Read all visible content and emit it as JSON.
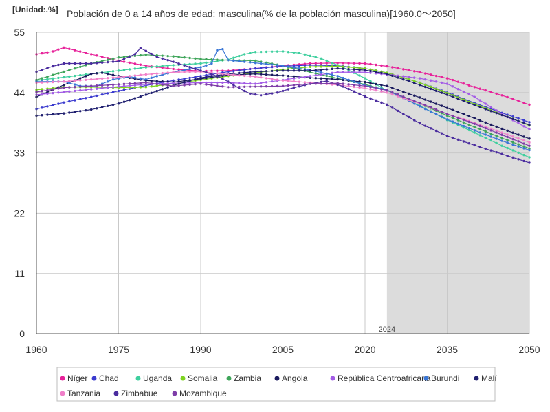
{
  "chart_data": {
    "type": "line",
    "unit_label": "[Unidad:.%]",
    "title": "Población de 0 a 14 años de edad: masculina(% de la población masculina)[1960.0～2050]",
    "x_range": [
      1960,
      2050
    ],
    "y_range": [
      0,
      55
    ],
    "x_ticks": [
      1960,
      1975,
      1990,
      2005,
      2020,
      2035,
      2050
    ],
    "y_ticks": [
      0,
      11,
      22,
      33,
      44,
      55
    ],
    "forecast_start": 2024,
    "forecast_label": "2024",
    "grid": true,
    "legend_position": "bottom",
    "series": [
      {
        "name": "Níger",
        "color": "#e7229a",
        "points": [
          [
            1960,
            51.0
          ],
          [
            1963,
            51.5
          ],
          [
            1965,
            52.2
          ],
          [
            1970,
            51.0
          ],
          [
            1975,
            49.8
          ],
          [
            1980,
            48.9
          ],
          [
            1985,
            48.3
          ],
          [
            1990,
            47.9
          ],
          [
            1995,
            48.0
          ],
          [
            2000,
            48.4
          ],
          [
            2005,
            48.9
          ],
          [
            2010,
            49.3
          ],
          [
            2015,
            49.4
          ],
          [
            2020,
            49.3
          ],
          [
            2024,
            48.8
          ],
          [
            2030,
            47.7
          ],
          [
            2035,
            46.6
          ],
          [
            2040,
            45.0
          ],
          [
            2045,
            43.5
          ],
          [
            2050,
            41.8
          ]
        ]
      },
      {
        "name": "Chad",
        "color": "#3b3bcf",
        "points": [
          [
            1960,
            41.0
          ],
          [
            1965,
            42.2
          ],
          [
            1970,
            43.2
          ],
          [
            1975,
            44.3
          ],
          [
            1980,
            45.3
          ],
          [
            1985,
            46.2
          ],
          [
            1990,
            47.0
          ],
          [
            1995,
            47.8
          ],
          [
            2000,
            48.4
          ],
          [
            2005,
            48.8
          ],
          [
            2010,
            49.0
          ],
          [
            2015,
            48.9
          ],
          [
            2020,
            48.4
          ],
          [
            2024,
            47.6
          ],
          [
            2030,
            45.8
          ],
          [
            2035,
            44.0
          ],
          [
            2040,
            42.1
          ],
          [
            2045,
            40.3
          ],
          [
            2050,
            38.6
          ]
        ]
      },
      {
        "name": "Uganda",
        "color": "#3ecf9e",
        "points": [
          [
            1960,
            46.2
          ],
          [
            1965,
            46.8
          ],
          [
            1970,
            47.4
          ],
          [
            1975,
            48.0
          ],
          [
            1980,
            48.6
          ],
          [
            1985,
            49.0
          ],
          [
            1990,
            49.3
          ],
          [
            1995,
            50.0
          ],
          [
            1998,
            51.0
          ],
          [
            2000,
            51.4
          ],
          [
            2005,
            51.5
          ],
          [
            2008,
            51.2
          ],
          [
            2012,
            50.2
          ],
          [
            2016,
            48.6
          ],
          [
            2020,
            46.6
          ],
          [
            2024,
            44.4
          ],
          [
            2030,
            41.6
          ],
          [
            2035,
            39.0
          ],
          [
            2040,
            36.7
          ],
          [
            2045,
            34.3
          ],
          [
            2050,
            32.2
          ]
        ]
      },
      {
        "name": "Somalia",
        "color": "#7ed321",
        "points": [
          [
            1960,
            44.5
          ],
          [
            1965,
            45.0
          ],
          [
            1970,
            45.0
          ],
          [
            1975,
            44.9
          ],
          [
            1980,
            45.0
          ],
          [
            1985,
            45.6
          ],
          [
            1990,
            46.3
          ],
          [
            1995,
            47.0
          ],
          [
            2000,
            47.6
          ],
          [
            2005,
            48.2
          ],
          [
            2010,
            48.7
          ],
          [
            2015,
            48.8
          ],
          [
            2020,
            48.4
          ],
          [
            2024,
            47.6
          ],
          [
            2030,
            45.8
          ],
          [
            2035,
            43.9
          ],
          [
            2040,
            41.9
          ],
          [
            2045,
            40.0
          ],
          [
            2050,
            38.0
          ]
        ]
      },
      {
        "name": "Zambia",
        "color": "#3fa55a",
        "points": [
          [
            1960,
            46.3
          ],
          [
            1965,
            47.8
          ],
          [
            1970,
            49.3
          ],
          [
            1975,
            50.4
          ],
          [
            1980,
            50.9
          ],
          [
            1985,
            50.6
          ],
          [
            1990,
            50.1
          ],
          [
            1995,
            49.9
          ],
          [
            2000,
            49.8
          ],
          [
            2005,
            48.9
          ],
          [
            2010,
            47.7
          ],
          [
            2015,
            46.6
          ],
          [
            2020,
            45.5
          ],
          [
            2024,
            44.4
          ],
          [
            2030,
            42.0
          ],
          [
            2035,
            39.8
          ],
          [
            2040,
            37.7
          ],
          [
            2045,
            35.7
          ],
          [
            2050,
            33.8
          ]
        ]
      },
      {
        "name": "Angola",
        "color": "#1a1a5e",
        "points": [
          [
            1960,
            43.2
          ],
          [
            1965,
            45.4
          ],
          [
            1970,
            47.4
          ],
          [
            1972,
            47.6
          ],
          [
            1975,
            47.0
          ],
          [
            1980,
            46.2
          ],
          [
            1985,
            45.9
          ],
          [
            1990,
            46.5
          ],
          [
            1995,
            47.2
          ],
          [
            2000,
            47.4
          ],
          [
            2005,
            47.1
          ],
          [
            2010,
            46.7
          ],
          [
            2015,
            46.4
          ],
          [
            2020,
            45.9
          ],
          [
            2024,
            45.2
          ],
          [
            2030,
            43.1
          ],
          [
            2035,
            41.2
          ],
          [
            2040,
            39.3
          ],
          [
            2045,
            37.4
          ],
          [
            2050,
            35.6
          ]
        ]
      },
      {
        "name": "República Centroafricana",
        "color": "#a35ce6",
        "points": [
          [
            1960,
            43.6
          ],
          [
            1965,
            44.1
          ],
          [
            1970,
            44.6
          ],
          [
            1975,
            45.1
          ],
          [
            1980,
            45.5
          ],
          [
            1985,
            45.7
          ],
          [
            1990,
            45.8
          ],
          [
            1995,
            45.8
          ],
          [
            2000,
            45.6
          ],
          [
            2005,
            46.3
          ],
          [
            2010,
            47.0
          ],
          [
            2015,
            47.7
          ],
          [
            2020,
            47.7
          ],
          [
            2024,
            47.3
          ],
          [
            2030,
            46.6
          ],
          [
            2035,
            45.6
          ],
          [
            2040,
            43.2
          ],
          [
            2045,
            40.1
          ],
          [
            2050,
            37.3
          ]
        ]
      },
      {
        "name": "Burundi",
        "color": "#3a76d6",
        "points": [
          [
            1960,
            46.0
          ],
          [
            1965,
            46.0
          ],
          [
            1968,
            45.2
          ],
          [
            1971,
            45.2
          ],
          [
            1974,
            46.4
          ],
          [
            1977,
            46.9
          ],
          [
            1980,
            46.4
          ],
          [
            1982,
            47.0
          ],
          [
            1984,
            47.5
          ],
          [
            1986,
            47.9
          ],
          [
            1988,
            48.3
          ],
          [
            1990,
            48.6
          ],
          [
            1992,
            49.3
          ],
          [
            1993,
            51.7
          ],
          [
            1994,
            51.9
          ],
          [
            1995,
            49.9
          ],
          [
            1997,
            49.7
          ],
          [
            2000,
            49.4
          ],
          [
            2005,
            48.9
          ],
          [
            2010,
            48.1
          ],
          [
            2015,
            47.0
          ],
          [
            2020,
            45.3
          ],
          [
            2024,
            44.5
          ],
          [
            2030,
            41.5
          ],
          [
            2035,
            39.1
          ],
          [
            2040,
            37.1
          ],
          [
            2045,
            35.2
          ],
          [
            2050,
            33.5
          ]
        ]
      },
      {
        "name": "Malí",
        "color": "#202070",
        "points": [
          [
            1960,
            39.8
          ],
          [
            1965,
            40.2
          ],
          [
            1970,
            40.9
          ],
          [
            1975,
            42.0
          ],
          [
            1980,
            43.6
          ],
          [
            1985,
            45.3
          ],
          [
            1990,
            46.7
          ],
          [
            1995,
            47.4
          ],
          [
            2000,
            47.8
          ],
          [
            2005,
            48.0
          ],
          [
            2010,
            48.0
          ],
          [
            2015,
            48.4
          ],
          [
            2020,
            48.1
          ],
          [
            2024,
            47.4
          ],
          [
            2030,
            45.4
          ],
          [
            2035,
            43.6
          ],
          [
            2040,
            41.7
          ],
          [
            2045,
            39.9
          ],
          [
            2050,
            38.1
          ]
        ]
      },
      {
        "name": "Tanzania",
        "color": "#f07fc9",
        "points": [
          [
            1960,
            45.8
          ],
          [
            1965,
            46.0
          ],
          [
            1970,
            46.4
          ],
          [
            1975,
            46.8
          ],
          [
            1980,
            47.3
          ],
          [
            1985,
            47.7
          ],
          [
            1990,
            47.8
          ],
          [
            1995,
            47.3
          ],
          [
            2000,
            46.9
          ],
          [
            2005,
            46.2
          ],
          [
            2010,
            45.8
          ],
          [
            2015,
            45.4
          ],
          [
            2020,
            44.8
          ],
          [
            2024,
            44.0
          ],
          [
            2030,
            42.0
          ],
          [
            2035,
            40.1
          ],
          [
            2040,
            38.5
          ],
          [
            2045,
            36.7
          ],
          [
            2050,
            34.9
          ]
        ]
      },
      {
        "name": "Zimbabue",
        "color": "#4a2c9e",
        "points": [
          [
            1960,
            47.8
          ],
          [
            1963,
            48.8
          ],
          [
            1965,
            49.3
          ],
          [
            1970,
            49.3
          ],
          [
            1975,
            49.7
          ],
          [
            1978,
            51.0
          ],
          [
            1979,
            52.1
          ],
          [
            1980,
            51.6
          ],
          [
            1982,
            50.5
          ],
          [
            1985,
            49.6
          ],
          [
            1990,
            48.0
          ],
          [
            1993,
            47.0
          ],
          [
            1995,
            46.0
          ],
          [
            1997,
            44.8
          ],
          [
            1999,
            43.8
          ],
          [
            2001,
            43.5
          ],
          [
            2004,
            44.0
          ],
          [
            2007,
            44.9
          ],
          [
            2010,
            45.6
          ],
          [
            2013,
            46.1
          ],
          [
            2016,
            45.1
          ],
          [
            2020,
            43.3
          ],
          [
            2024,
            41.8
          ],
          [
            2030,
            38.4
          ],
          [
            2035,
            36.1
          ],
          [
            2040,
            34.4
          ],
          [
            2045,
            32.8
          ],
          [
            2050,
            31.2
          ]
        ]
      },
      {
        "name": "Mozambique",
        "color": "#7e3da8",
        "points": [
          [
            1960,
            44.1
          ],
          [
            1965,
            44.9
          ],
          [
            1970,
            45.2
          ],
          [
            1975,
            45.5
          ],
          [
            1980,
            45.8
          ],
          [
            1985,
            45.2
          ],
          [
            1990,
            45.6
          ],
          [
            1995,
            45.0
          ],
          [
            2000,
            45.1
          ],
          [
            2005,
            45.2
          ],
          [
            2010,
            45.6
          ],
          [
            2015,
            45.7
          ],
          [
            2020,
            45.2
          ],
          [
            2024,
            44.4
          ],
          [
            2030,
            42.1
          ],
          [
            2035,
            40.1
          ],
          [
            2040,
            38.3
          ],
          [
            2045,
            36.3
          ],
          [
            2050,
            34.3
          ]
        ]
      }
    ]
  }
}
